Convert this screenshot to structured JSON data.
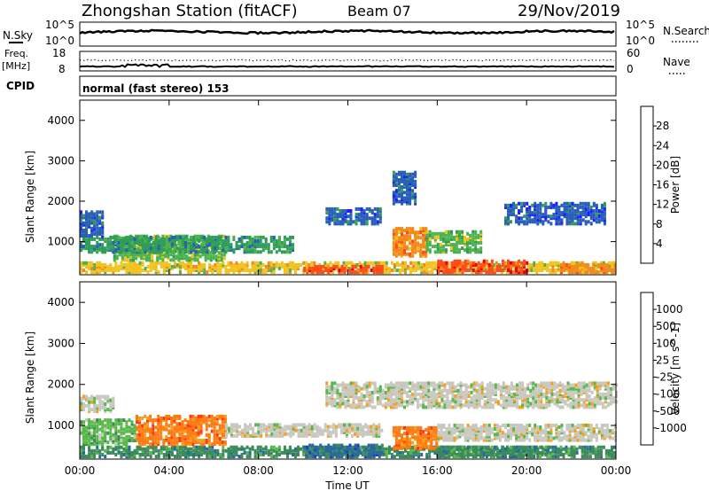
{
  "header": {
    "station": "Zhongshan Station (fitACF)",
    "beam": "Beam 07",
    "date": "29/Nov/2019"
  },
  "top_panels": {
    "nsky_label": "N.Sky",
    "nsky_ticks": [
      "10^5",
      "10^0"
    ],
    "nsearch_label": "N.Search",
    "nsearch_ticks": [
      "10^5",
      "10^0"
    ],
    "freq_label_1": "Freq.",
    "freq_label_2": "[MHz]",
    "freq_ticks": [
      "18",
      "8"
    ],
    "nave_label": "Nave",
    "nave_ticks": [
      "60",
      "0"
    ],
    "cpid_label": "CPID",
    "cpid_text": "normal (fast stereo) 153"
  },
  "chart_data": [
    {
      "type": "heatmap",
      "quantity": "Power",
      "xlabel": "Time UT",
      "ylabel": "Slant Range [km]",
      "xticks": [
        "00:00",
        "04:00",
        "08:00",
        "12:00",
        "16:00",
        "20:00",
        "00:00"
      ],
      "xlim_hours": [
        0,
        24
      ],
      "yticks": [
        "1000",
        "2000",
        "3000",
        "4000"
      ],
      "ylim_km": [
        180,
        4500
      ],
      "colorbar": {
        "label": "Power [dB]",
        "ticks": [
          "4",
          "8",
          "12",
          "16",
          "20",
          "24",
          "28"
        ],
        "colors": [
          "#1f1fff",
          "#2a5fb8",
          "#2f9c5a",
          "#4db34d",
          "#f2c21f",
          "#f28a1a",
          "#ff4a1a",
          "#e80000"
        ]
      },
      "regions": [
        {
          "t0": 0.0,
          "t1": 24.0,
          "r0": 200,
          "r1": 450,
          "level": 4
        },
        {
          "t0": 1.5,
          "t1": 6.5,
          "r0": 500,
          "r1": 1100,
          "level": 3
        },
        {
          "t0": 0.0,
          "t1": 9.5,
          "r0": 700,
          "r1": 1100,
          "level": 2
        },
        {
          "t0": 0.0,
          "t1": 1.0,
          "r0": 1100,
          "r1": 1700,
          "level": 1
        },
        {
          "t0": 10.0,
          "t1": 13.5,
          "r0": 200,
          "r1": 350,
          "level": 6
        },
        {
          "t0": 14.0,
          "t1": 15.5,
          "r0": 600,
          "r1": 1300,
          "level": 5
        },
        {
          "t0": 15.5,
          "t1": 18.0,
          "r0": 700,
          "r1": 1200,
          "level": 3
        },
        {
          "t0": 16.0,
          "t1": 20.0,
          "r0": 200,
          "r1": 500,
          "level": 6
        },
        {
          "t0": 11.0,
          "t1": 13.5,
          "r0": 1400,
          "r1": 1800,
          "level": 1
        },
        {
          "t0": 19.0,
          "t1": 23.5,
          "r0": 1400,
          "r1": 1900,
          "level": 1
        },
        {
          "t0": 14.0,
          "t1": 15.0,
          "r0": 1900,
          "r1": 2700,
          "level": 1
        },
        {
          "t0": 21.5,
          "t1": 24.0,
          "r0": 200,
          "r1": 400,
          "level": 5
        }
      ]
    },
    {
      "type": "heatmap",
      "quantity": "Velocity",
      "xlabel": "Time UT",
      "ylabel": "Slant Range [km]",
      "xticks": [
        "00:00",
        "04:00",
        "08:00",
        "12:00",
        "16:00",
        "20:00",
        "00:00"
      ],
      "xlim_hours": [
        0,
        24
      ],
      "yticks": [
        "1000",
        "2000",
        "3000",
        "4000"
      ],
      "ylim_km": [
        180,
        4500
      ],
      "colorbar": {
        "label": "Velocity [m s^-1]",
        "ticks": [
          "1000",
          "500",
          "100",
          "25",
          "-25",
          "-100",
          "-500",
          "-1000"
        ],
        "colors": [
          "#1f3cc8",
          "#2a6a9a",
          "#3a8a5a",
          "#59b84a",
          "#c8c8c0",
          "#f2a020",
          "#ff7a10",
          "#ff3a10",
          "#e80000"
        ]
      },
      "regions": [
        {
          "t0": 0.0,
          "t1": 24.0,
          "r0": 200,
          "r1": 450,
          "level": 2
        },
        {
          "t0": 2.5,
          "t1": 6.5,
          "r0": 500,
          "r1": 1200,
          "level": 6
        },
        {
          "t0": 0.0,
          "t1": 2.5,
          "r0": 500,
          "r1": 1100,
          "level": 3
        },
        {
          "t0": 6.5,
          "t1": 13.5,
          "r0": 700,
          "r1": 1000,
          "level": 4
        },
        {
          "t0": 0.0,
          "t1": 1.5,
          "r0": 1300,
          "r1": 1700,
          "level": 4
        },
        {
          "t0": 14.0,
          "t1": 16.0,
          "r0": 400,
          "r1": 900,
          "level": 6
        },
        {
          "t0": 16.0,
          "t1": 24.0,
          "r0": 600,
          "r1": 1000,
          "level": 4
        },
        {
          "t0": 11.0,
          "t1": 24.0,
          "r0": 1400,
          "r1": 2000,
          "level": 4
        },
        {
          "t0": 10.0,
          "t1": 13.5,
          "r0": 200,
          "r1": 500,
          "level": 1
        },
        {
          "t0": 16.0,
          "t1": 21.0,
          "r0": 200,
          "r1": 450,
          "level": 2
        }
      ]
    }
  ]
}
